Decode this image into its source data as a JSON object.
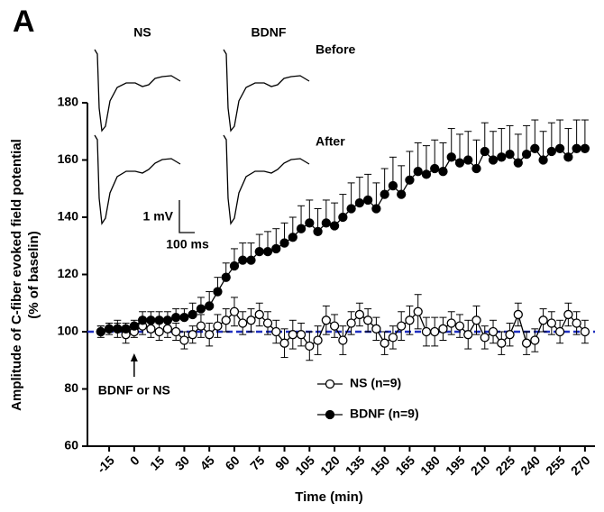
{
  "chart_data": {
    "type": "line",
    "panel_label": "A",
    "xlabel": "Time (min)",
    "ylabel": [
      "Amplitude of C-fiber evoked field potential",
      "(% of baselin)"
    ],
    "x": [
      -20,
      -15,
      -10,
      -5,
      0,
      5,
      10,
      15,
      20,
      25,
      30,
      35,
      40,
      45,
      50,
      55,
      60,
      65,
      70,
      75,
      80,
      85,
      90,
      95,
      100,
      105,
      110,
      115,
      120,
      125,
      130,
      135,
      140,
      145,
      150,
      155,
      160,
      165,
      170,
      175,
      180,
      185,
      190,
      195,
      200,
      205,
      210,
      215,
      220,
      225,
      230,
      235,
      240,
      245,
      250,
      255,
      260,
      265,
      270
    ],
    "xlim": [
      -28,
      276
    ],
    "xticks": [
      -15,
      0,
      15,
      30,
      45,
      60,
      75,
      90,
      105,
      120,
      135,
      150,
      165,
      180,
      195,
      210,
      225,
      240,
      255,
      270
    ],
    "ylim": [
      60,
      180
    ],
    "yticks": [
      60,
      80,
      100,
      120,
      140,
      160,
      180
    ],
    "reference_line": {
      "value": 100,
      "color": "#1f2fbf"
    },
    "series": [
      {
        "name": "NS (n=9)",
        "marker": "open",
        "values": [
          100,
          101,
          101,
          99,
          100,
          102,
          101,
          100,
          101,
          100,
          97,
          99,
          102,
          99,
          102,
          104,
          107,
          103,
          104,
          106,
          103,
          100,
          96,
          99,
          99,
          95,
          97,
          104,
          102,
          97,
          103,
          106,
          104,
          101,
          96,
          98,
          102,
          104,
          107,
          100,
          100,
          101,
          103,
          102,
          99,
          104,
          98,
          100,
          96,
          99,
          106,
          96,
          97,
          104,
          103,
          100,
          106,
          103,
          100
        ],
        "errors": [
          2,
          2,
          3,
          3,
          2,
          3,
          3,
          3,
          3,
          3,
          3,
          3,
          4,
          4,
          4,
          4,
          5,
          4,
          4,
          4,
          4,
          4,
          5,
          5,
          4,
          5,
          5,
          5,
          4,
          5,
          4,
          4,
          4,
          4,
          4,
          4,
          5,
          5,
          6,
          5,
          5,
          4,
          4,
          4,
          5,
          5,
          4,
          4,
          4,
          4,
          4,
          4,
          4,
          4,
          4,
          4,
          4,
          4,
          4
        ]
      },
      {
        "name": "BDNF (n=9)",
        "marker": "filled",
        "values": [
          100,
          101,
          101,
          101,
          102,
          104,
          104,
          104,
          104,
          105,
          105,
          106,
          108,
          109,
          114,
          119,
          123,
          125,
          125,
          128,
          128,
          129,
          131,
          133,
          136,
          138,
          135,
          138,
          137,
          140,
          143,
          145,
          146,
          143,
          148,
          151,
          148,
          153,
          156,
          155,
          157,
          156,
          161,
          159,
          160,
          157,
          163,
          160,
          161,
          162,
          159,
          162,
          164,
          160,
          163,
          164,
          161,
          164,
          164
        ],
        "errors": [
          2,
          2,
          2,
          2,
          2,
          3,
          3,
          3,
          3,
          3,
          3,
          4,
          4,
          5,
          5,
          5,
          6,
          6,
          6,
          6,
          7,
          7,
          7,
          7,
          8,
          8,
          8,
          8,
          8,
          8,
          9,
          9,
          9,
          9,
          9,
          10,
          10,
          10,
          10,
          10,
          10,
          10,
          10,
          10,
          10,
          10,
          10,
          10,
          10,
          10,
          10,
          10,
          10,
          10,
          10,
          10,
          10,
          10,
          10
        ]
      }
    ],
    "legend": "lower center",
    "annotations": {
      "arrow_label": {
        "text": "BDNF or NS",
        "x": 0
      },
      "inset_labels": [
        "NS",
        "BDNF",
        "Before",
        "After",
        "1 mV",
        "100 ms"
      ]
    }
  }
}
